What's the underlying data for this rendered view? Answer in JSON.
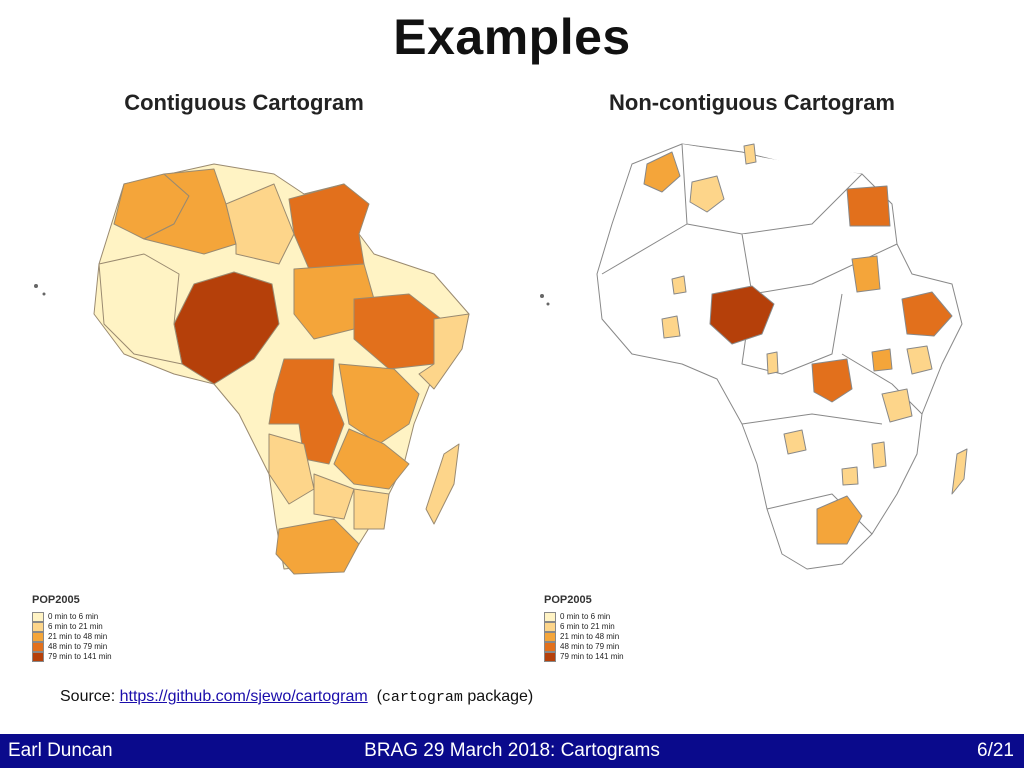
{
  "slide": {
    "title": "Examples"
  },
  "maps": {
    "contiguous": {
      "title": "Contiguous Cartogram"
    },
    "noncontiguous": {
      "title": "Non-contiguous Cartogram"
    }
  },
  "legend": {
    "title": "POP2005",
    "items": [
      {
        "label": "0 min to 6 min",
        "color": "#fff3c4"
      },
      {
        "label": "6 min to 21 min",
        "color": "#fdd58a"
      },
      {
        "label": "21 min to 48 min",
        "color": "#f4a53a"
      },
      {
        "label": "48 min to 79 min",
        "color": "#e2701c"
      },
      {
        "label": "79 min to 141 min",
        "color": "#b5400a"
      }
    ]
  },
  "source": {
    "prefix": "Source:",
    "link": "https://github.com/sjewo/cartogram",
    "open": "(",
    "package": "cartogram",
    "suffix": "package)"
  },
  "footer": {
    "author": "Earl Duncan",
    "event": "BRAG 29 March 2018: Cartograms",
    "page": "6/21"
  }
}
